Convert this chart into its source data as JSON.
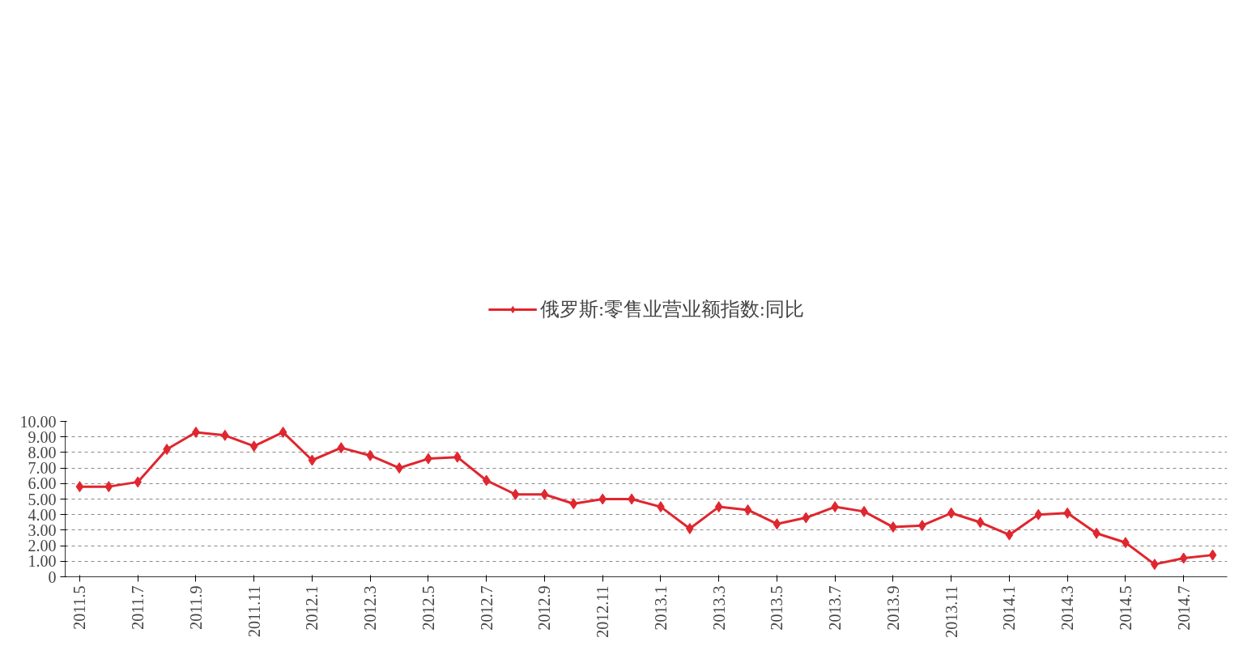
{
  "chart_data": {
    "type": "line",
    "categories": [
      "2011.5",
      null,
      "2011.7",
      null,
      "2011.9",
      null,
      "2011.11",
      null,
      "2012.1",
      null,
      "2012.3",
      null,
      "2012.5",
      null,
      "2012.7",
      null,
      "2012.9",
      null,
      "2012.11",
      null,
      "2013.1",
      null,
      "2013.3",
      null,
      "2013.5",
      null,
      "2013.7",
      null,
      "2013.9",
      null,
      "2013.11",
      null,
      "2014.1",
      null,
      "2014.3",
      null,
      "2014.5",
      null,
      "2014.7",
      null
    ],
    "series": [
      {
        "name": "俄罗斯:零售业营业额指数:同比",
        "color": "#e0262e",
        "values": [
          5.8,
          5.8,
          6.1,
          8.2,
          9.3,
          9.1,
          8.4,
          9.3,
          7.5,
          8.3,
          7.8,
          7.0,
          7.6,
          7.7,
          6.2,
          5.3,
          5.3,
          4.7,
          5.0,
          5.0,
          4.5,
          3.1,
          4.5,
          4.3,
          3.4,
          3.8,
          4.5,
          4.2,
          3.2,
          3.3,
          4.1,
          3.5,
          2.7,
          4.0,
          4.1,
          2.8,
          2.2,
          0.8,
          1.2,
          1.4
        ]
      }
    ],
    "ylim": [
      0,
      10
    ],
    "yticks": [
      {
        "value": 0,
        "label": "0"
      },
      {
        "value": 1,
        "label": "1.00"
      },
      {
        "value": 2,
        "label": "2.00"
      },
      {
        "value": 3,
        "label": "3.00"
      },
      {
        "value": 4,
        "label": "4.00"
      },
      {
        "value": 5,
        "label": "5.00"
      },
      {
        "value": 6,
        "label": "6.00"
      },
      {
        "value": 7,
        "label": "7.00"
      },
      {
        "value": 8,
        "label": "8.00"
      },
      {
        "value": 9,
        "label": "9.00"
      },
      {
        "value": 10,
        "label": "10.00"
      }
    ],
    "grid": "y",
    "legend": "top",
    "marker": "diamond",
    "line_style": "solid"
  }
}
